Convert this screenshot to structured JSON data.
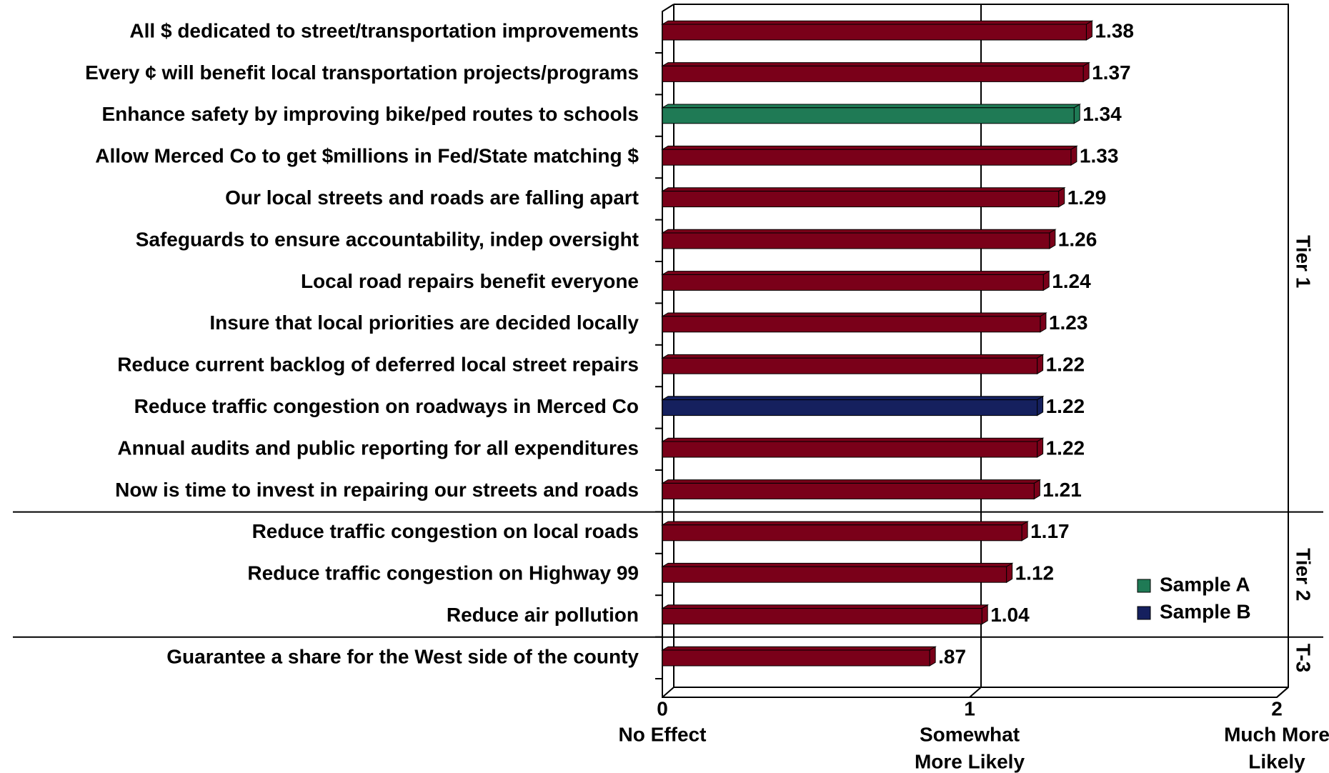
{
  "chart_data": {
    "type": "bar",
    "groups": [
      {
        "label": "Tier 1",
        "categories": [
          "All $ dedicated to street/transportation improvements",
          "Every ¢ will benefit local transportation projects/programs",
          "Enhance safety by improving bike/ped routes to schools",
          "Allow Merced Co to get $millions in Fed/State matching $",
          "Our local streets and roads are falling apart",
          "Safeguards to ensure accountability, indep oversight",
          "Local road repairs benefit everyone",
          "Insure that local priorities are decided locally",
          "Reduce current backlog of deferred local street repairs",
          "Reduce traffic congestion on roadways in Merced Co",
          "Annual audits and public reporting for all expenditures",
          "Now is time to invest in repairing our streets and roads"
        ]
      },
      {
        "label": "Tier 2",
        "categories": [
          "Reduce traffic congestion on local roads",
          "Reduce traffic congestion on Highway 99",
          "Reduce air pollution"
        ]
      },
      {
        "label": "T-3",
        "categories": [
          "Guarantee a share for the West side of the county"
        ]
      }
    ],
    "values": [
      1.38,
      1.37,
      1.34,
      1.33,
      1.29,
      1.26,
      1.24,
      1.23,
      1.22,
      1.22,
      1.22,
      1.21,
      1.17,
      1.12,
      1.04,
      0.87
    ],
    "value_labels": [
      "1.38",
      "1.37",
      "1.34",
      "1.33",
      "1.29",
      "1.26",
      "1.24",
      "1.23",
      "1.22",
      "1.22",
      "1.22",
      "1.21",
      "1.17",
      "1.12",
      "1.04",
      ".87"
    ],
    "colors": [
      "#7a0019",
      "#7a0019",
      "#1f7a55",
      "#7a0019",
      "#7a0019",
      "#7a0019",
      "#7a0019",
      "#7a0019",
      "#7a0019",
      "#15205e",
      "#7a0019",
      "#7a0019",
      "#7a0019",
      "#7a0019",
      "#7a0019",
      "#7a0019"
    ],
    "legend": [
      {
        "label": "Sample A",
        "color": "#1f7a55"
      },
      {
        "label": "Sample B",
        "color": "#15205e"
      }
    ],
    "xlim": [
      0,
      2
    ],
    "xticks": [
      0,
      1,
      2
    ],
    "xtick_captions": [
      [
        "No Effect"
      ],
      [
        "Somewhat",
        "More  Likely"
      ],
      [
        "Much More",
        "Likely"
      ]
    ]
  }
}
